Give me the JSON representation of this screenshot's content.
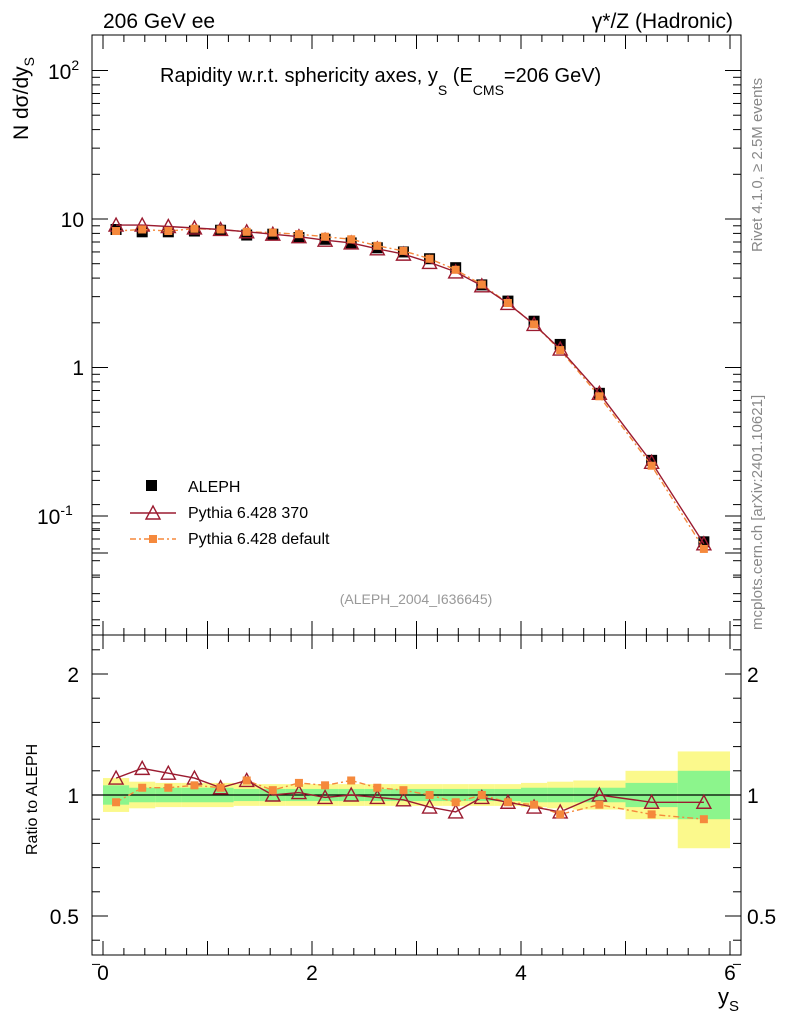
{
  "header": {
    "left": "206 GeV ee",
    "right": "γ*/Z (Hadronic)",
    "title_main": "Rapidity w.r.t. sphericity axes, y",
    "title_sub_s": "S",
    "title_paren_open": " (E",
    "title_sub_cms": "CMS",
    "title_end": "=206 GeV)"
  },
  "side": {
    "rivet": "Rivet 4.1.0, ≥ 2.5M events",
    "mcplots": "mcplots.cern.ch [arXiv:2401.10621]"
  },
  "watermark": "(ALEPH_2004_I636645)",
  "axes": {
    "ylabel_main": "N  dσ/dy",
    "ylabel_sub": "S",
    "ratio_ylabel": "Ratio to ALEPH",
    "xlabel_main": "y",
    "xlabel_sub": "S",
    "main_ticks": [
      "10",
      "1",
      "10",
      "10"
    ],
    "main_tick_exps": [
      "2",
      "-1"
    ],
    "ratio_ticks": [
      "2",
      "1",
      "0.5"
    ],
    "x_ticks": [
      "0",
      "2",
      "4",
      "6"
    ]
  },
  "colors": {
    "data": "#000000",
    "p370": "#9b1b30",
    "pdef": "#f5893c",
    "band_inner": "#8cf58c",
    "band_outer": "#fbf98c"
  },
  "chart_data": {
    "type": "line",
    "x": [
      0.125,
      0.375,
      0.625,
      0.875,
      1.125,
      1.375,
      1.625,
      1.875,
      2.125,
      2.375,
      2.625,
      2.875,
      3.125,
      3.375,
      3.625,
      3.875,
      4.125,
      4.375,
      4.75,
      5.25,
      5.75
    ],
    "bin_edges": [
      0,
      0.25,
      0.5,
      0.75,
      1.0,
      1.25,
      1.5,
      1.75,
      2.0,
      2.25,
      2.5,
      2.75,
      3.0,
      3.25,
      3.5,
      3.75,
      4.0,
      4.25,
      4.5,
      5.0,
      5.5,
      6.0
    ],
    "xlim": [
      -0.1,
      6.1
    ],
    "ylim_main": [
      0.0185,
      180
    ],
    "ylim_ratio": [
      0.3,
      2.3
    ],
    "series": [
      {
        "name": "ALEPH",
        "values": [
          8.5,
          8.2,
          8.2,
          8.3,
          8.4,
          7.8,
          7.9,
          7.5,
          7.3,
          6.9,
          6.4,
          6.0,
          5.4,
          4.7,
          3.6,
          2.8,
          2.05,
          1.43,
          0.67,
          0.237,
          0.067
        ]
      },
      {
        "name": "Pythia 6.428 370",
        "values": [
          9.1,
          9.1,
          8.9,
          8.7,
          8.5,
          8.2,
          7.9,
          7.6,
          7.2,
          6.9,
          6.3,
          5.8,
          5.1,
          4.4,
          3.55,
          2.7,
          1.95,
          1.33,
          0.67,
          0.23,
          0.065
        ]
      },
      {
        "name": "Pythia 6.428 default",
        "values": [
          8.3,
          8.5,
          8.3,
          8.6,
          8.5,
          8.2,
          8.1,
          7.9,
          7.6,
          7.3,
          6.6,
          6.1,
          5.4,
          4.55,
          3.62,
          2.72,
          1.95,
          1.31,
          0.64,
          0.218,
          0.06
        ]
      }
    ],
    "ratio": {
      "Pythia 6.428 370": [
        1.07,
        1.11,
        1.09,
        1.07,
        1.03,
        1.06,
        1.0,
        1.01,
        0.99,
        1.0,
        0.99,
        0.98,
        0.95,
        0.93,
        0.99,
        0.97,
        0.95,
        0.93,
        1.0,
        0.97,
        0.97
      ],
      "Pythia 6.428 default": [
        0.97,
        1.03,
        1.03,
        1.04,
        1.03,
        1.06,
        1.02,
        1.05,
        1.04,
        1.06,
        1.03,
        1.02,
        1.0,
        0.97,
        1.0,
        0.97,
        0.96,
        0.92,
        0.96,
        0.92,
        0.9
      ],
      "band_inner": [
        [
          0.96,
          1.04
        ],
        [
          0.97,
          1.03
        ],
        [
          0.97,
          1.03
        ],
        [
          0.97,
          1.03
        ],
        [
          0.97,
          1.03
        ],
        [
          0.975,
          1.025
        ],
        [
          0.975,
          1.025
        ],
        [
          0.975,
          1.025
        ],
        [
          0.975,
          1.025
        ],
        [
          0.975,
          1.025
        ],
        [
          0.975,
          1.025
        ],
        [
          0.975,
          1.025
        ],
        [
          0.975,
          1.025
        ],
        [
          0.975,
          1.025
        ],
        [
          0.975,
          1.025
        ],
        [
          0.975,
          1.025
        ],
        [
          0.97,
          1.03
        ],
        [
          0.97,
          1.03
        ],
        [
          0.97,
          1.03
        ],
        [
          0.95,
          1.05
        ],
        [
          0.9,
          1.1
        ]
      ],
      "band_outer": [
        [
          0.93,
          1.07
        ],
        [
          0.945,
          1.055
        ],
        [
          0.95,
          1.05
        ],
        [
          0.95,
          1.05
        ],
        [
          0.95,
          1.05
        ],
        [
          0.955,
          1.045
        ],
        [
          0.955,
          1.045
        ],
        [
          0.955,
          1.045
        ],
        [
          0.955,
          1.045
        ],
        [
          0.955,
          1.045
        ],
        [
          0.955,
          1.045
        ],
        [
          0.955,
          1.045
        ],
        [
          0.955,
          1.045
        ],
        [
          0.955,
          1.045
        ],
        [
          0.955,
          1.045
        ],
        [
          0.955,
          1.045
        ],
        [
          0.95,
          1.05
        ],
        [
          0.945,
          1.055
        ],
        [
          0.94,
          1.06
        ],
        [
          0.9,
          1.1
        ],
        [
          0.78,
          1.18
        ]
      ]
    },
    "legend": {
      "placement": "bottom-left",
      "entries": [
        "ALEPH",
        "Pythia 6.428 370",
        "Pythia 6.428 default"
      ]
    }
  }
}
